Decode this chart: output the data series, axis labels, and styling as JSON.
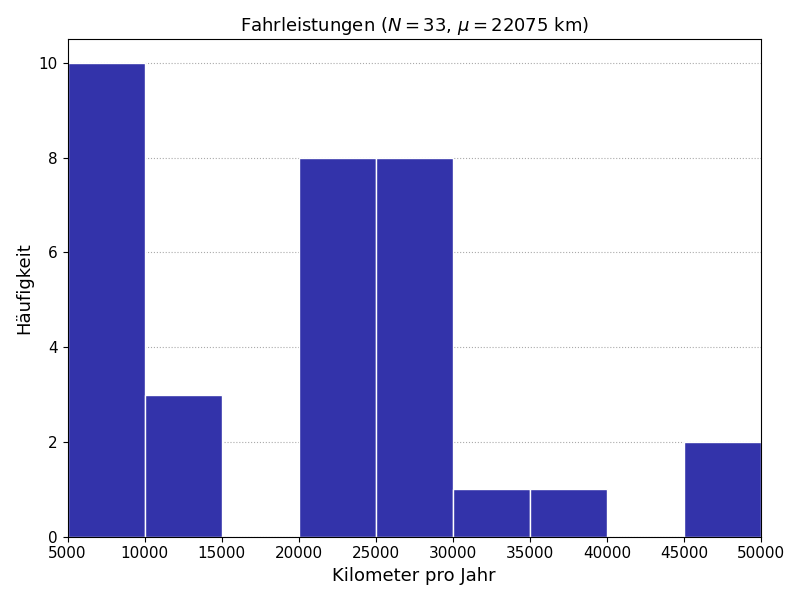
{
  "title": "Fahrleistungen ($N = 33$, $\\mu = 22075$ km)",
  "xlabel": "Kilometer pro Jahr",
  "ylabel": "Häufigkeit",
  "bin_edges": [
    5000,
    10000,
    15000,
    20000,
    25000,
    30000,
    35000,
    40000,
    45000,
    50000
  ],
  "counts": [
    10,
    3,
    0,
    8,
    8,
    1,
    1,
    0,
    2
  ],
  "bar_color": "#3333aa",
  "bar_edgecolor": "white",
  "ylim": [
    0,
    10.5
  ],
  "xlim": [
    5000,
    50000
  ],
  "yticks": [
    0,
    2,
    4,
    6,
    8,
    10
  ],
  "xticks": [
    5000,
    10000,
    15000,
    20000,
    25000,
    30000,
    35000,
    40000,
    45000,
    50000
  ],
  "grid_color": "#aaaaaa",
  "grid_style": "dotted",
  "figsize": [
    8.0,
    6.0
  ],
  "dpi": 100
}
